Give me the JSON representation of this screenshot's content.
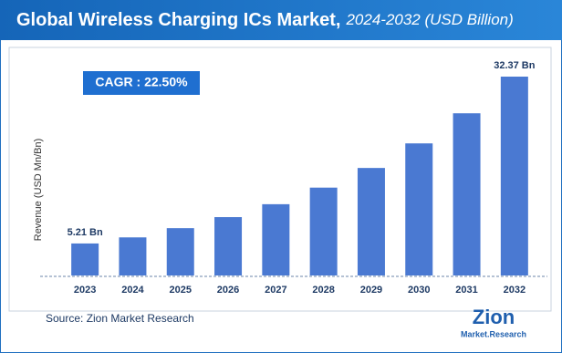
{
  "chart_data": {
    "type": "bar",
    "title": "Global Wireless Charging ICs Market,",
    "subtitle": "2024-2032 (USD Billion)",
    "annotation": "CAGR :  22.50%",
    "y_label": "Revenue (USD Mn/Bn)",
    "source": "Source: Zion Market Research",
    "categories": [
      "2023",
      "2024",
      "2025",
      "2026",
      "2027",
      "2028",
      "2029",
      "2030",
      "2031",
      "2032"
    ],
    "values": [
      5.21,
      6.2,
      7.7,
      9.5,
      11.6,
      14.3,
      17.5,
      21.5,
      26.4,
      32.37
    ],
    "value_labels": [
      "5.21 Bn",
      null,
      null,
      null,
      null,
      null,
      null,
      null,
      null,
      "32.37 Bn"
    ],
    "color": "#4a79d2"
  },
  "logo": {
    "name": "Zion",
    "tagline": "Market.Research"
  }
}
